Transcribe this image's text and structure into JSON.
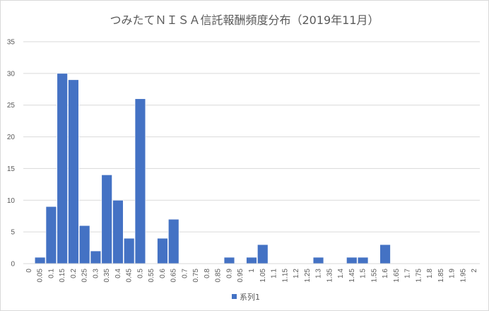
{
  "chart_data": {
    "type": "bar",
    "title": "つみたてＮＩＳＡ信託報酬頻度分布（2019年11月）",
    "xlabel": "",
    "ylabel": "",
    "categories": [
      "0",
      "0.05",
      "0.1",
      "0.15",
      "0.2",
      "0.25",
      "0.3",
      "0.35",
      "0.4",
      "0.45",
      "0.5",
      "0.55",
      "0.6",
      "0.65",
      "0.7",
      "0.75",
      "0.8",
      "0.85",
      "0.9",
      "0.95",
      "1",
      "1.05",
      "1.1",
      "1.15",
      "1.2",
      "1.25",
      "1.3",
      "1.35",
      "1.4",
      "1.45",
      "1.5",
      "1.55",
      "1.6",
      "1.65",
      "1.7",
      "1.75",
      "1.8",
      "1.85",
      "1.9",
      "1.95",
      "2"
    ],
    "series": [
      {
        "name": "系列1",
        "color": "#4472C4",
        "values": [
          0,
          1,
          9,
          30,
          29,
          6,
          2,
          14,
          10,
          4,
          26,
          0,
          4,
          7,
          0,
          0,
          0,
          0,
          1,
          0,
          1,
          3,
          0,
          0,
          0,
          0,
          1,
          0,
          0,
          1,
          1,
          0,
          3,
          0,
          0,
          0,
          0,
          0,
          0,
          0,
          0
        ]
      }
    ],
    "ylim": [
      0,
      35
    ],
    "yticks": [
      0,
      5,
      10,
      15,
      20,
      25,
      30,
      35
    ],
    "grid": true,
    "legend_position": "bottom"
  }
}
